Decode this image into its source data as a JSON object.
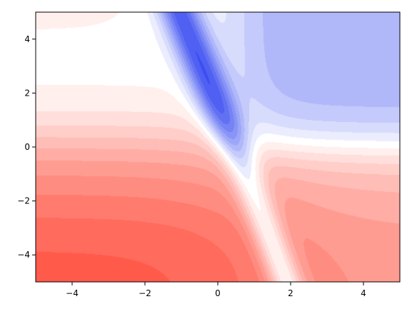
{
  "chart_data": {
    "type": "heatmap",
    "subtype": "filled-contour",
    "title": "",
    "xlabel": "",
    "ylabel": "",
    "xlim": [
      -5,
      5
    ],
    "ylim": [
      -5,
      5
    ],
    "x_ticks": [
      -4,
      -2,
      0,
      2,
      4
    ],
    "y_ticks": [
      -4,
      -2,
      0,
      2,
      4
    ],
    "x_tick_labels": [
      "−4",
      "−2",
      "0",
      "2",
      "4"
    ],
    "y_tick_labels": [
      "−4",
      "−2",
      "0",
      "2",
      "4"
    ],
    "colormap": {
      "name": "bwr",
      "negative_color": "#3b4ef0",
      "zero_color": "#ffffff",
      "positive_color": "#ff5a4a"
    },
    "grid": false,
    "legend": false,
    "colorbar": false,
    "contour_levels": 20
  }
}
